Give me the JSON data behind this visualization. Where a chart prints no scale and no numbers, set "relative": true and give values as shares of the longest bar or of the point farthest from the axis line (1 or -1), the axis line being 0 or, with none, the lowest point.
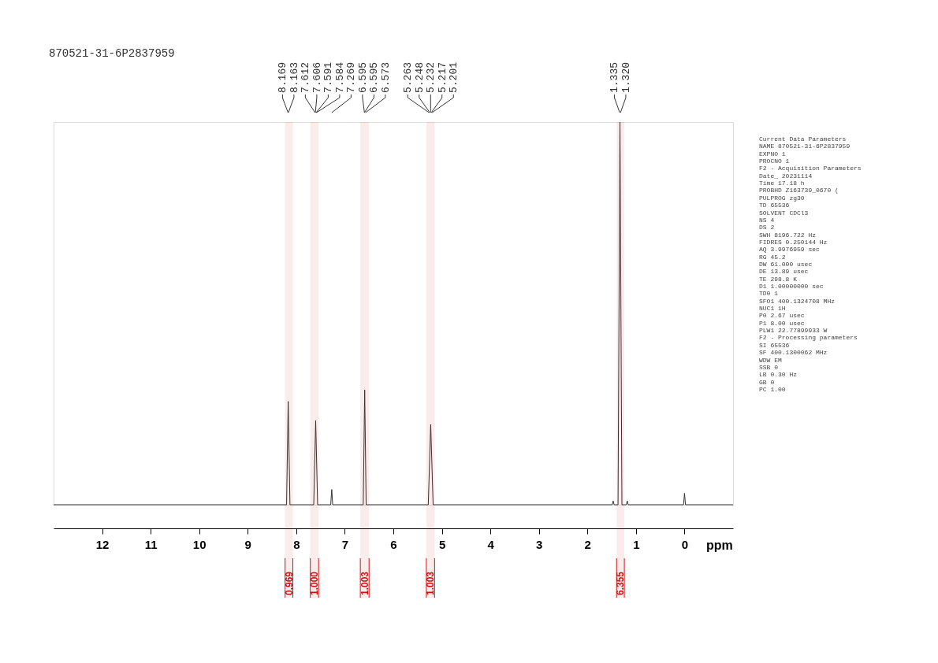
{
  "chart_data": {
    "type": "line",
    "title": "870521-31-6P2837959",
    "xlabel": "ppm",
    "relative": true,
    "color": "#333333",
    "x": [
      13.0,
      8.2,
      8.166,
      8.13,
      7.64,
      7.6,
      7.56,
      7.29,
      7.269,
      7.25,
      6.62,
      6.59,
      6.56,
      5.28,
      5.23,
      5.18,
      1.49,
      1.47,
      1.45,
      1.37,
      1.33,
      1.29,
      1.2,
      1.18,
      1.16,
      0.02,
      0.0,
      -0.02,
      -1.0
    ],
    "values": [
      0,
      0,
      0.27,
      0,
      0,
      0.22,
      0,
      0,
      0.04,
      0,
      0,
      0.3,
      0,
      0,
      0.21,
      0,
      0,
      0.01,
      0,
      0,
      1,
      0,
      0,
      0.01,
      0,
      0,
      0.03,
      0,
      0
    ],
    "xlim": [
      13,
      -1
    ],
    "xticks": [
      12,
      11,
      10,
      9,
      8,
      7,
      6,
      5,
      4,
      3,
      2,
      1,
      0
    ],
    "grid": false,
    "legend": false,
    "marker": "none",
    "line_style": "solid",
    "bands": [
      {
        "axis": "x",
        "from": 8.23,
        "to": 8.07,
        "label": "0.969",
        "color": "#d01010"
      },
      {
        "axis": "x",
        "from": 7.71,
        "to": 7.54,
        "label": "1.000",
        "color": "#d01010"
      },
      {
        "axis": "x",
        "from": 6.68,
        "to": 6.5,
        "label": "1.003",
        "color": "#d01010"
      },
      {
        "axis": "x",
        "from": 5.32,
        "to": 5.15,
        "label": "1.003",
        "color": "#d01010"
      },
      {
        "axis": "x",
        "from": 1.4,
        "to": 1.24,
        "label": "6.355",
        "color": "#d01010"
      }
    ],
    "annotations": [
      "8.169",
      "8.163",
      "7.612",
      "7.606",
      "7.591",
      "7.584",
      "7.269",
      "6.595",
      "6.595",
      "6.573",
      "5.263",
      "5.248",
      "5.232",
      "5.217",
      "5.201",
      "1.335",
      "1.320",
      "Current Data Parameters",
      "NAME       870521-31-6P2837959",
      "EXPNO                        1",
      "PROCNO                       1",
      "F2 - Acquisition Parameters",
      "Date_             20231114",
      "Time                17.18 h",
      "PROBHD    Z163739_0670 (",
      "PULPROG              zg30",
      "TD                  65536",
      "SOLVENT             CDCl3",
      "NS                      4",
      "DS                      2",
      "SWH              8196.722 Hz",
      "FIDRES           0.250144 Hz",
      "AQ              3.9976959 sec",
      "RG                   45.2",
      "DW                 61.000 usec",
      "DE                  13.89 usec",
      "TE                  298.8 K",
      "D1             1.00000000 sec",
      "TD0                     1",
      "SFO1          400.1324708 MHz",
      "NUC1                   1H",
      "P0                   2.67 usec",
      "P1                   8.00 usec",
      "PLW1          22.77899933 W",
      "F2 - Processing parameters",
      "SI                  65536",
      "SF            400.1300062 MHz",
      "WDW                    EM",
      "SSB                     0",
      "LB                   0.30 Hz",
      "GB                      0",
      "PC                   1.00"
    ]
  }
}
